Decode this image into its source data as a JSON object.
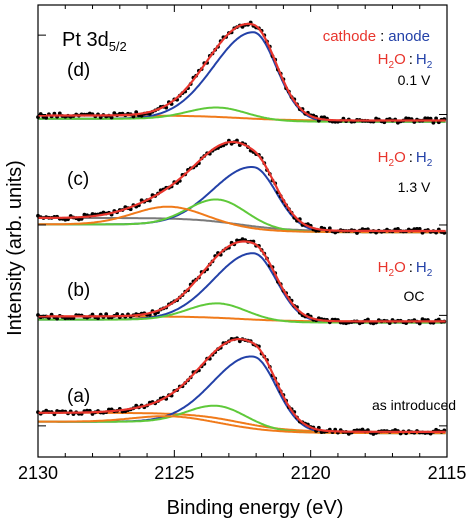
{
  "chart_data": {
    "type": "line",
    "title": "Pt 3d",
    "title_subscript": "5/2",
    "xlabel": "Binding energy (eV)",
    "ylabel": "Intensity (arb. units)",
    "xlim": [
      2130,
      2115
    ],
    "x_reversed": true,
    "xticks": [
      2130,
      2125,
      2120,
      2115
    ],
    "ylim": [
      0,
      4.5
    ],
    "legend": {
      "cathode": "cathode",
      "separator": ":",
      "anode": "anode"
    },
    "colors": {
      "data": "#000000",
      "envelope": "#e8352d",
      "main_peak": "#2341a8",
      "shoulder_peak": "#5fc93a",
      "third_peak": "#f07a1a",
      "background": "#f07a1a",
      "background_c": "#7a7a7a",
      "cathode": "#e8352d",
      "anode": "#2341a8"
    },
    "panels": [
      {
        "label": "(a)",
        "condition": "as introduced",
        "has_gas_label": false,
        "baseline": 0.22,
        "bg_low": 0.03,
        "bg_high": 0.22,
        "components": [
          {
            "name": "main",
            "center": 2122.1,
            "amp": 0.72,
            "sigma": 0.85,
            "tail": 1.7
          },
          {
            "name": "shoulder",
            "center": 2123.4,
            "amp": 0.19,
            "sigma": 1.05,
            "tail": 1.05
          },
          {
            "name": "third",
            "center": 2125.2,
            "amp": 0.06,
            "sigma": 1.3,
            "tail": 1.0
          }
        ]
      },
      {
        "label": "(b)",
        "condition": "OC",
        "has_gas_label": true,
        "gas_left": "H",
        "gas_left_sub": "2",
        "gas_left_suffix": "O",
        "gas_sep": ":",
        "gas_right": "H",
        "gas_right_sub": "2",
        "baseline": 1.32,
        "bg_low": 0.03,
        "bg_high": 0.08,
        "components": [
          {
            "name": "main",
            "center": 2122.1,
            "amp": 0.68,
            "sigma": 0.85,
            "tail": 1.7
          },
          {
            "name": "shoulder",
            "center": 2123.4,
            "amp": 0.17,
            "sigma": 1.05,
            "tail": 1.05
          }
        ]
      },
      {
        "label": "(c)",
        "condition": "1.3 V",
        "has_gas_label": true,
        "gas_left": "H",
        "gas_left_sub": "2",
        "gas_left_suffix": "O",
        "gas_sep": ":",
        "gas_right": "H",
        "gas_right_sub": "2",
        "baseline": 2.22,
        "bg_low": 0.03,
        "bg_high": 0.16,
        "components": [
          {
            "name": "main",
            "center": 2122.1,
            "amp": 0.62,
            "sigma": 0.85,
            "tail": 1.7
          },
          {
            "name": "shoulder",
            "center": 2123.4,
            "amp": 0.27,
            "sigma": 1.05,
            "tail": 1.05
          },
          {
            "name": "third",
            "center": 2125.2,
            "amp": 0.18,
            "sigma": 1.3,
            "tail": 1.0
          }
        ]
      },
      {
        "label": "(d)",
        "condition": "0.1 V",
        "has_gas_label": true,
        "gas_left": "H",
        "gas_left_sub": "2",
        "gas_left_suffix": "O",
        "gas_sep": ":",
        "gas_right": "H",
        "gas_right_sub": "2",
        "baseline": 3.32,
        "bg_low": 0.03,
        "bg_high": 0.08,
        "components": [
          {
            "name": "main",
            "center": 2122.1,
            "amp": 0.88,
            "sigma": 0.85,
            "tail": 1.7
          },
          {
            "name": "shoulder",
            "center": 2123.4,
            "amp": 0.12,
            "sigma": 1.05,
            "tail": 1.05
          }
        ]
      }
    ]
  }
}
